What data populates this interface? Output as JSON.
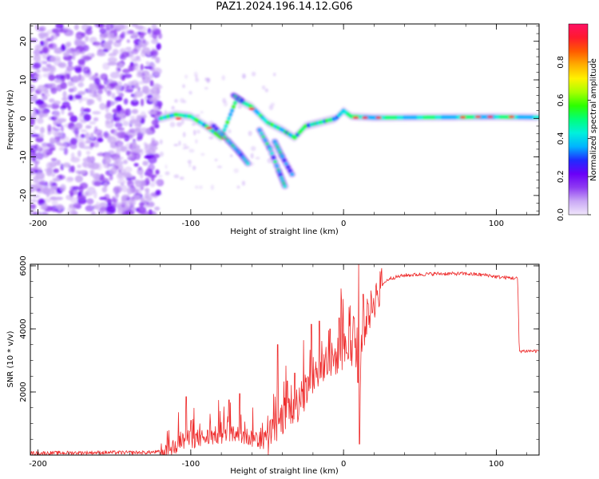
{
  "title": "PAZ1.2024.196.14.12.G06",
  "chart_data": [
    {
      "type": "heatmap",
      "xlabel": "Height of straight line (km)",
      "ylabel": "Frequency (Hz)",
      "xlim": [
        -205,
        128
      ],
      "ylim": [
        -25,
        24.5
      ],
      "xticks": [
        -200,
        -100,
        0,
        100
      ],
      "yticks": [
        -20,
        -10,
        0,
        10,
        20
      ],
      "colorbar": {
        "label": "Normalized spectral amplitude",
        "range": [
          0.0,
          1.0
        ],
        "ticks": [
          "0.0",
          "0.2",
          "0.4",
          "0.6",
          "0.8"
        ],
        "colormap": [
          "#f0e6fb",
          "#c9a8f5",
          "#8f3cf2",
          "#6a00f8",
          "#1f2bff",
          "#00b4ff",
          "#00f0dc",
          "#00ff7a",
          "#2dff00",
          "#a8ff00",
          "#fff200",
          "#ffae00",
          "#ff5a00",
          "#ff1a2e",
          "#ff1064"
        ]
      },
      "features": {
        "noise_region_x": [
          -205,
          -120
        ],
        "carrier": [
          [
            -120,
            0
          ],
          [
            -110,
            1
          ],
          [
            -100,
            0.5
          ],
          [
            -90,
            -2
          ],
          [
            -80,
            -5
          ],
          [
            -70,
            5
          ],
          [
            -60,
            3
          ],
          [
            -50,
            -1
          ],
          [
            -40,
            -3
          ],
          [
            -32,
            -5
          ],
          [
            -25,
            -2
          ],
          [
            -15,
            -1
          ],
          [
            -5,
            0
          ],
          [
            0,
            2
          ],
          [
            5,
            0.5
          ],
          [
            20,
            0.2
          ],
          [
            60,
            0.3
          ],
          [
            100,
            0.4
          ],
          [
            128,
            0.3
          ]
        ],
        "branches": [
          [
            [
              -85,
              -2
            ],
            [
              -75,
              -6
            ],
            [
              -68,
              -9
            ],
            [
              -62,
              -12
            ]
          ],
          [
            [
              -55,
              -3
            ],
            [
              -48,
              -8
            ],
            [
              -42,
              -14
            ],
            [
              -38,
              -18
            ]
          ],
          [
            [
              -72,
              6
            ],
            [
              -66,
              4.5
            ]
          ],
          [
            [
              -45,
              -6
            ],
            [
              -40,
              -10
            ],
            [
              -33,
              -15
            ]
          ]
        ]
      }
    },
    {
      "type": "line",
      "xlabel": "Height of straight line (km)",
      "ylabel": "SNR (10 * v/v)",
      "xlim": [
        -205,
        128
      ],
      "ylim": [
        0,
        6050
      ],
      "xticks": [
        -200,
        -100,
        0,
        100
      ],
      "yticks": [
        2000,
        4000,
        6000
      ],
      "color": "#ee2a2a",
      "envelope": [
        [
          -205,
          60
        ],
        [
          -160,
          80
        ],
        [
          -130,
          80
        ],
        [
          -120,
          100
        ],
        [
          -112,
          250
        ],
        [
          -105,
          450
        ],
        [
          -100,
          500
        ],
        [
          -90,
          550
        ],
        [
          -80,
          650
        ],
        [
          -70,
          650
        ],
        [
          -60,
          550
        ],
        [
          -50,
          450
        ],
        [
          -45,
          900
        ],
        [
          -40,
          1200
        ],
        [
          -35,
          1500
        ],
        [
          -30,
          1600
        ],
        [
          -25,
          1900
        ],
        [
          -20,
          2500
        ],
        [
          -15,
          2700
        ],
        [
          -10,
          2900
        ],
        [
          -5,
          3100
        ],
        [
          0,
          3300
        ],
        [
          5,
          3400
        ],
        [
          8,
          3500
        ],
        [
          10,
          1500
        ],
        [
          12,
          3700
        ],
        [
          15,
          4300
        ],
        [
          20,
          4900
        ],
        [
          25,
          5400
        ],
        [
          30,
          5600
        ],
        [
          40,
          5700
        ],
        [
          60,
          5750
        ],
        [
          80,
          5750
        ],
        [
          95,
          5700
        ],
        [
          100,
          5650
        ],
        [
          114,
          5600
        ],
        [
          115,
          3300
        ],
        [
          120,
          3300
        ],
        [
          128,
          3300
        ]
      ],
      "spikes": [
        [
          -103,
          1850
        ],
        [
          -100,
          1100
        ],
        [
          -75,
          1750
        ],
        [
          -68,
          1950
        ],
        [
          -43,
          3500
        ],
        [
          -37,
          2350
        ],
        [
          -32,
          2600
        ],
        [
          -21,
          4150
        ],
        [
          -16,
          4250
        ],
        [
          -9,
          4000
        ],
        [
          -3,
          4350
        ],
        [
          7,
          4350
        ],
        [
          10,
          6050
        ],
        [
          10.5,
          350
        ],
        [
          13,
          5100
        ],
        [
          16,
          4800
        ]
      ],
      "noise_amplitude": {
        "quiet": 60,
        "ramp": 300,
        "plateau": 60
      }
    }
  ]
}
